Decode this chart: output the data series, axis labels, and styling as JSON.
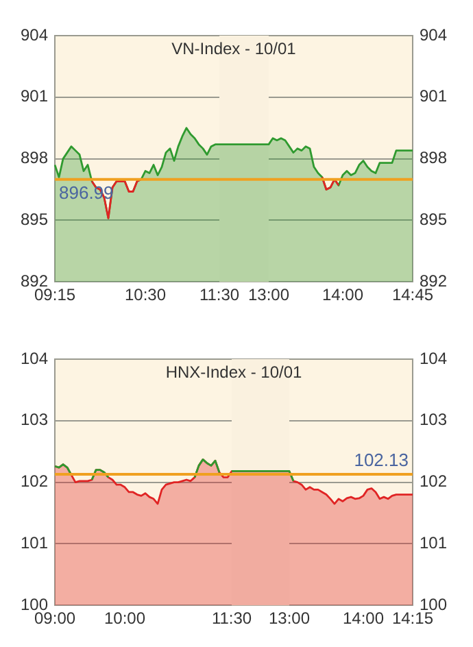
{
  "chart_data": [
    {
      "type": "area",
      "title": "VN-Index - 10/01",
      "categories": [
        "09:15",
        null,
        null,
        null,
        null,
        null,
        null,
        null,
        null,
        null,
        null,
        null,
        null,
        null,
        null,
        null,
        null,
        null,
        null,
        null,
        null,
        null,
        "10:30",
        null,
        null,
        null,
        null,
        null,
        null,
        null,
        null,
        null,
        null,
        null,
        null,
        null,
        null,
        null,
        null,
        null,
        "11:30",
        null,
        null,
        null,
        null,
        null,
        null,
        null,
        null,
        null,
        null,
        null,
        "13:00",
        null,
        null,
        null,
        null,
        null,
        null,
        null,
        null,
        null,
        null,
        null,
        null,
        null,
        null,
        null,
        null,
        null,
        "14:00",
        null,
        null,
        null,
        null,
        null,
        null,
        null,
        null,
        null,
        null,
        null,
        null,
        null,
        null,
        null,
        null,
        "14:45"
      ],
      "series": [
        {
          "type": "area",
          "color": "#2f9a2f",
          "values": [
            897.7,
            897.1,
            898.0,
            898.3,
            898.6,
            898.4,
            898.2,
            897.4,
            897.7,
            896.9,
            896.6,
            896.5,
            896.1,
            895.1,
            896.6,
            896.9,
            896.9,
            896.9,
            896.4,
            896.4,
            896.9,
            897.0,
            897.4,
            897.3,
            897.7,
            897.2,
            897.6,
            898.3,
            898.5,
            897.9,
            898.6,
            899.1,
            899.5,
            899.2,
            899.0,
            898.7,
            898.5,
            898.2,
            898.6,
            898.7,
            898.7,
            898.7,
            898.7,
            898.7,
            898.7,
            898.7,
            898.7,
            898.7,
            898.7,
            898.7,
            898.7,
            898.7,
            898.7,
            899.0,
            898.9,
            899.0,
            898.9,
            898.6,
            898.3,
            898.5,
            898.4,
            898.6,
            898.5,
            897.6,
            897.3,
            897.1,
            896.5,
            896.6,
            897.0,
            896.7,
            897.2,
            897.4,
            897.2,
            897.3,
            897.7,
            897.9,
            897.6,
            897.4,
            897.3,
            897.8,
            897.8,
            897.8,
            897.8,
            898.4,
            898.4,
            898.4,
            898.4,
            898.4
          ]
        },
        {
          "type": "line",
          "color": "#e02424",
          "values": [
            null,
            null,
            null,
            null,
            null,
            null,
            null,
            null,
            null,
            896.9,
            896.6,
            896.5,
            896.1,
            895.1,
            896.6,
            896.9,
            896.9,
            896.9,
            896.4,
            896.4,
            896.9,
            897.0,
            null,
            null,
            null,
            null,
            null,
            null,
            null,
            null,
            null,
            null,
            null,
            null,
            null,
            null,
            null,
            null,
            null,
            null,
            null,
            null,
            null,
            null,
            null,
            null,
            null,
            null,
            null,
            null,
            null,
            null,
            null,
            null,
            null,
            null,
            null,
            null,
            null,
            null,
            null,
            null,
            null,
            null,
            null,
            897.1,
            896.5,
            896.6,
            897.0,
            896.7,
            null,
            null,
            null,
            null,
            null,
            null,
            null,
            null,
            null,
            null,
            null,
            null,
            null,
            null,
            null,
            null,
            null,
            null
          ]
        }
      ],
      "ylim": [
        892,
        904
      ],
      "yticks": [
        892,
        895,
        898,
        901,
        904
      ],
      "y2lim": [
        892,
        904
      ],
      "y2ticks": [
        892,
        895,
        898,
        901,
        904
      ],
      "ref_lines": [
        {
          "axis": "y",
          "value": 896.99,
          "label": "896.99",
          "color": "#f0a020"
        }
      ],
      "bands": [
        {
          "axis": "x",
          "from": "11:30",
          "to": "13:00",
          "color": "#faf1df"
        }
      ],
      "grid": true
    },
    {
      "type": "area",
      "title": "HNX-Index - 10/01",
      "categories": [
        "09:00",
        null,
        null,
        null,
        null,
        null,
        null,
        null,
        null,
        null,
        null,
        null,
        null,
        null,
        null,
        null,
        null,
        "10:00",
        null,
        null,
        null,
        null,
        null,
        null,
        null,
        null,
        null,
        null,
        null,
        null,
        null,
        null,
        null,
        null,
        null,
        null,
        null,
        null,
        null,
        null,
        null,
        null,
        null,
        "11:30",
        null,
        null,
        null,
        null,
        null,
        null,
        null,
        null,
        null,
        null,
        null,
        null,
        null,
        "13:00",
        null,
        null,
        null,
        null,
        null,
        null,
        null,
        null,
        null,
        null,
        null,
        null,
        null,
        null,
        null,
        null,
        null,
        "14:00",
        null,
        null,
        null,
        null,
        null,
        null,
        null,
        null,
        null,
        null,
        null,
        "14:15"
      ],
      "series": [
        {
          "type": "area",
          "color": "#e02424",
          "values": [
            102.26,
            102.24,
            102.29,
            102.24,
            102.12,
            102.0,
            102.02,
            102.02,
            102.02,
            102.04,
            102.2,
            102.2,
            102.16,
            102.08,
            102.04,
            101.96,
            101.96,
            101.92,
            101.84,
            101.84,
            101.8,
            101.78,
            101.82,
            101.76,
            101.73,
            101.65,
            101.88,
            101.96,
            101.98,
            102.0,
            102.0,
            102.02,
            102.04,
            102.02,
            102.08,
            102.27,
            102.37,
            102.31,
            102.27,
            102.35,
            102.16,
            102.08,
            102.08,
            102.18,
            102.18,
            102.18,
            102.18,
            102.18,
            102.18,
            102.18,
            102.18,
            102.18,
            102.18,
            102.18,
            102.18,
            102.18,
            102.18,
            102.18,
            102.02,
            102.0,
            101.96,
            101.88,
            101.92,
            101.88,
            101.88,
            101.84,
            101.8,
            101.73,
            101.65,
            101.73,
            101.69,
            101.74,
            101.76,
            101.73,
            101.74,
            101.78,
            101.88,
            101.9,
            101.84,
            101.73,
            101.76,
            101.73,
            101.78,
            101.8,
            101.8,
            101.8,
            101.8,
            101.8
          ]
        },
        {
          "type": "line",
          "color": "#2f9a2f",
          "values": [
            102.26,
            102.24,
            102.29,
            102.24,
            102.12,
            null,
            null,
            null,
            null,
            102.04,
            102.2,
            102.2,
            102.16,
            102.08,
            null,
            null,
            null,
            null,
            null,
            null,
            null,
            null,
            null,
            null,
            null,
            null,
            null,
            null,
            null,
            null,
            null,
            null,
            null,
            null,
            102.08,
            102.27,
            102.37,
            102.31,
            102.27,
            102.35,
            102.16,
            null,
            null,
            102.18,
            102.18,
            102.18,
            102.18,
            102.18,
            102.18,
            102.18,
            102.18,
            102.18,
            102.18,
            102.18,
            102.18,
            102.18,
            102.18,
            102.18,
            102.02,
            null,
            null,
            null,
            null,
            null,
            null,
            null,
            null,
            null,
            null,
            null,
            null,
            null,
            null,
            null,
            null,
            null,
            null,
            null,
            null,
            null,
            null,
            null,
            null,
            null,
            null,
            null,
            null,
            null
          ]
        }
      ],
      "ylim": [
        100,
        104
      ],
      "yticks": [
        100,
        101,
        102,
        103,
        104
      ],
      "y2lim": [
        100,
        104
      ],
      "y2ticks": [
        100,
        101,
        102,
        103,
        104
      ],
      "ref_lines": [
        {
          "axis": "y",
          "value": 102.13,
          "label": "102.13",
          "color": "#f0a020"
        }
      ],
      "bands": [
        {
          "axis": "x",
          "from": "11:30",
          "to": "13:00",
          "color": "#faf1df"
        }
      ],
      "grid": true
    }
  ]
}
